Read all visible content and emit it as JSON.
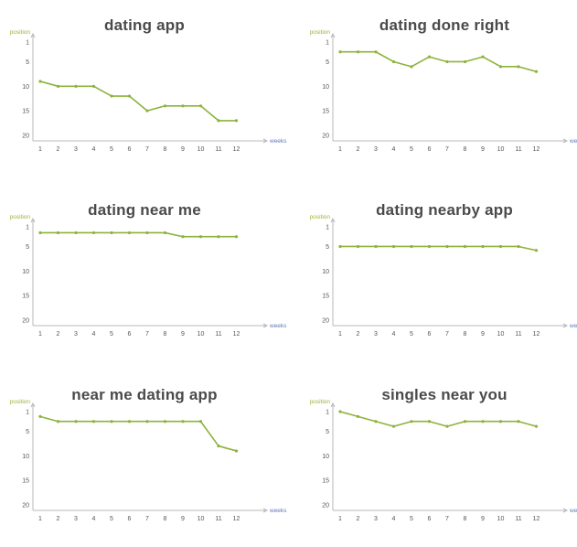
{
  "colors": {
    "series": "#8cb33c",
    "ylabel": "#9ab53d",
    "xlabel": "#5f79b8",
    "axis": "#b9b9b9",
    "title": "#4a4a4a"
  },
  "chart_data": [
    {
      "type": "line",
      "title": "dating app",
      "ylabel": "position",
      "xlabel": "weeks",
      "x": [
        1,
        2,
        3,
        4,
        5,
        6,
        7,
        8,
        9,
        10,
        11,
        12
      ],
      "y_reversed": true,
      "ylim": [
        1,
        20
      ],
      "yticks": [
        1,
        5,
        10,
        15,
        20
      ],
      "grid": false,
      "series": [
        {
          "values": [
            9,
            10,
            10,
            10,
            12,
            12,
            15,
            14,
            14,
            14,
            17,
            17
          ]
        }
      ]
    },
    {
      "type": "line",
      "title": "dating done right",
      "ylabel": "position",
      "xlabel": "weeks",
      "x": [
        1,
        2,
        3,
        4,
        5,
        6,
        7,
        8,
        9,
        10,
        11,
        12
      ],
      "y_reversed": true,
      "ylim": [
        1,
        20
      ],
      "yticks": [
        1,
        5,
        10,
        15,
        20
      ],
      "grid": false,
      "series": [
        {
          "values": [
            3,
            3,
            3,
            5,
            6,
            4,
            5,
            5,
            4,
            6,
            6,
            7
          ]
        }
      ]
    },
    {
      "type": "line",
      "title": "dating near me",
      "ylabel": "position",
      "xlabel": "weeks",
      "x": [
        1,
        2,
        3,
        4,
        5,
        6,
        7,
        8,
        9,
        10,
        11,
        12
      ],
      "y_reversed": true,
      "ylim": [
        1,
        20
      ],
      "yticks": [
        1,
        5,
        10,
        15,
        20
      ],
      "grid": false,
      "series": [
        {
          "values": [
            2.2,
            2.2,
            2.2,
            2.2,
            2.2,
            2.2,
            2.2,
            2.2,
            3,
            3,
            3,
            3
          ]
        }
      ]
    },
    {
      "type": "line",
      "title": "dating nearby app",
      "ylabel": "position",
      "xlabel": "weeks",
      "x": [
        1,
        2,
        3,
        4,
        5,
        6,
        7,
        8,
        9,
        10,
        11,
        12
      ],
      "y_reversed": true,
      "ylim": [
        1,
        20
      ],
      "yticks": [
        1,
        5,
        10,
        15,
        20
      ],
      "grid": false,
      "series": [
        {
          "values": [
            5,
            5,
            5,
            5,
            5,
            5,
            5,
            5,
            5,
            5,
            5,
            5.8
          ]
        }
      ]
    },
    {
      "type": "line",
      "title": "near me dating app",
      "ylabel": "position",
      "xlabel": "weeks",
      "x": [
        1,
        2,
        3,
        4,
        5,
        6,
        7,
        8,
        9,
        10,
        11,
        12
      ],
      "y_reversed": true,
      "ylim": [
        1,
        20
      ],
      "yticks": [
        1,
        5,
        10,
        15,
        20
      ],
      "grid": false,
      "series": [
        {
          "values": [
            2,
            3,
            3,
            3,
            3,
            3,
            3,
            3,
            3,
            3,
            8,
            9
          ]
        }
      ]
    },
    {
      "type": "line",
      "title": "singles near you",
      "ylabel": "position",
      "xlabel": "weeks",
      "x": [
        1,
        2,
        3,
        4,
        5,
        6,
        7,
        8,
        9,
        10,
        11,
        12
      ],
      "y_reversed": true,
      "ylim": [
        1,
        20
      ],
      "yticks": [
        1,
        5,
        10,
        15,
        20
      ],
      "grid": false,
      "series": [
        {
          "values": [
            1,
            2,
            3,
            4,
            3,
            3,
            4,
            3,
            3,
            3,
            3,
            4
          ]
        }
      ]
    }
  ]
}
